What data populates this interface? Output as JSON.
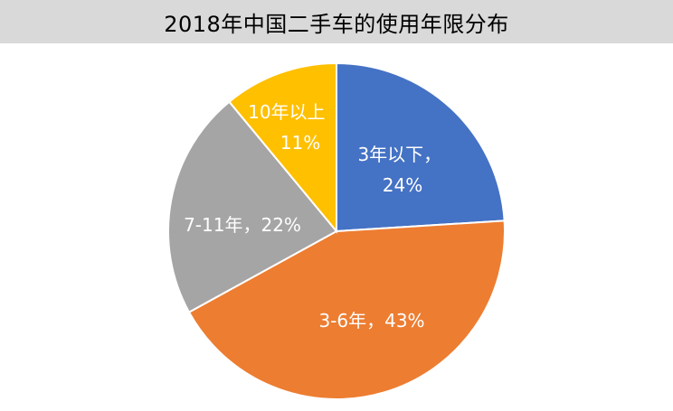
{
  "chart_data": {
    "type": "pie",
    "title": "2018年中国二手车的使用年限分布",
    "slices": [
      {
        "label": "3年以下，24%",
        "category": "3年以下",
        "value": 24,
        "color": "#4472c4"
      },
      {
        "label": "3-6年，43%",
        "category": "3-6年",
        "value": 43,
        "color": "#ed7d31"
      },
      {
        "label": "7-11年，22%",
        "category": "7-11年",
        "value": 22,
        "color": "#a5a5a5"
      },
      {
        "label": "10年以上 11%",
        "category": "10年以上",
        "value": 11,
        "color": "#ffc000"
      }
    ],
    "start_angle_deg": 0,
    "direction": "clockwise",
    "legend": "none"
  }
}
